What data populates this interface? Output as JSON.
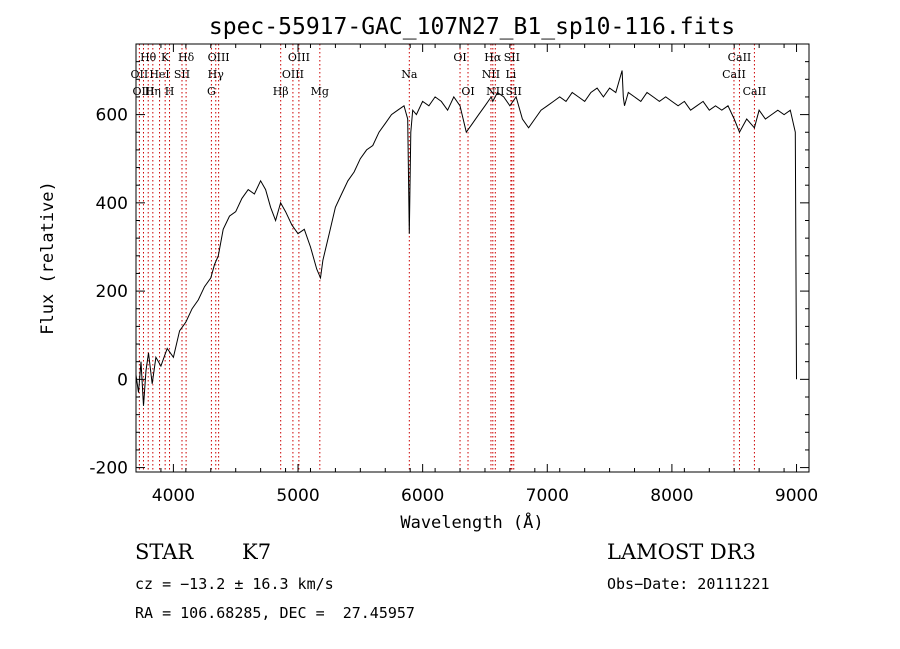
{
  "chart_data": {
    "type": "line",
    "title": "spec-55917-GAC_107N27_B1_sp10-116.fits",
    "xlabel": "Wavelength (Å)",
    "ylabel": "Flux (relative)",
    "xlim": [
      3700,
      9100
    ],
    "ylim": [
      -210,
      760
    ],
    "x_ticks": [
      4000,
      5000,
      6000,
      7000,
      8000,
      9000
    ],
    "y_ticks": [
      -200,
      0,
      200,
      400,
      600
    ],
    "series": [
      {
        "name": "flux",
        "x": [
          3700,
          3720,
          3740,
          3760,
          3780,
          3800,
          3830,
          3860,
          3900,
          3950,
          4000,
          4050,
          4100,
          4150,
          4200,
          4250,
          4300,
          4330,
          4360,
          4400,
          4450,
          4500,
          4550,
          4600,
          4650,
          4700,
          4740,
          4780,
          4820,
          4860,
          4900,
          4950,
          5000,
          5050,
          5100,
          5150,
          5180,
          5200,
          5250,
          5300,
          5350,
          5400,
          5450,
          5500,
          5550,
          5600,
          5650,
          5700,
          5750,
          5800,
          5850,
          5880,
          5893,
          5905,
          5920,
          5950,
          6000,
          6050,
          6100,
          6150,
          6200,
          6250,
          6300,
          6350,
          6400,
          6450,
          6500,
          6550,
          6563,
          6600,
          6650,
          6700,
          6750,
          6800,
          6850,
          6900,
          6950,
          7000,
          7050,
          7100,
          7150,
          7200,
          7250,
          7300,
          7350,
          7400,
          7450,
          7500,
          7550,
          7600,
          7610,
          7620,
          7650,
          7700,
          7750,
          7800,
          7850,
          7900,
          7950,
          8000,
          8050,
          8100,
          8150,
          8200,
          8250,
          8300,
          8350,
          8400,
          8450,
          8500,
          8542,
          8600,
          8662,
          8700,
          8750,
          8800,
          8850,
          8900,
          8950,
          8990,
          9000
        ],
        "y": [
          10,
          -30,
          40,
          -60,
          20,
          60,
          -10,
          50,
          30,
          70,
          50,
          110,
          130,
          160,
          180,
          210,
          230,
          260,
          280,
          340,
          370,
          380,
          410,
          430,
          420,
          450,
          430,
          390,
          360,
          400,
          380,
          350,
          330,
          340,
          300,
          250,
          230,
          270,
          330,
          390,
          420,
          450,
          470,
          500,
          520,
          530,
          560,
          580,
          600,
          610,
          620,
          590,
          330,
          560,
          610,
          600,
          630,
          620,
          640,
          630,
          610,
          640,
          620,
          560,
          580,
          600,
          620,
          640,
          630,
          650,
          640,
          620,
          640,
          590,
          570,
          590,
          610,
          620,
          630,
          640,
          630,
          650,
          640,
          630,
          650,
          660,
          640,
          660,
          650,
          700,
          640,
          620,
          650,
          640,
          630,
          650,
          640,
          630,
          640,
          630,
          620,
          630,
          610,
          620,
          630,
          610,
          620,
          610,
          620,
          590,
          560,
          590,
          570,
          610,
          590,
          600,
          610,
          600,
          610,
          560,
          0
        ]
      }
    ],
    "spectral_lines": [
      {
        "label": "Hθ",
        "x": 3798,
        "row": 0
      },
      {
        "label": "OII",
        "x": 3727,
        "row": 1
      },
      {
        "label": "OIII",
        "x": 3760,
        "row": 2
      },
      {
        "label": "K",
        "x": 3934,
        "row": 0
      },
      {
        "label": "HeI",
        "x": 3889,
        "row": 1
      },
      {
        "label": "Hη",
        "x": 3835,
        "row": 2
      },
      {
        "label": "SII",
        "x": 4069,
        "row": 1
      },
      {
        "label": "Hδ",
        "x": 4102,
        "row": 0
      },
      {
        "label": "H",
        "x": 3969,
        "row": 2
      },
      {
        "label": "OIII",
        "x": 4363,
        "row": 0
      },
      {
        "label": "Hγ",
        "x": 4340,
        "row": 1
      },
      {
        "label": "G",
        "x": 4305,
        "row": 2
      },
      {
        "label": "OIII",
        "x": 5007,
        "row": 0
      },
      {
        "label": "OIII",
        "x": 4959,
        "row": 1
      },
      {
        "label": "Hβ",
        "x": 4861,
        "row": 2
      },
      {
        "label": "Mg",
        "x": 5175,
        "row": 2
      },
      {
        "label": "Na",
        "x": 5893,
        "row": 1
      },
      {
        "label": "OI",
        "x": 6300,
        "row": 0
      },
      {
        "label": "OI",
        "x": 6364,
        "row": 2
      },
      {
        "label": "Hα",
        "x": 6563,
        "row": 0
      },
      {
        "label": "SII",
        "x": 6716,
        "row": 0
      },
      {
        "label": "NII",
        "x": 6548,
        "row": 1
      },
      {
        "label": "Li",
        "x": 6708,
        "row": 1
      },
      {
        "label": "NII",
        "x": 6583,
        "row": 2
      },
      {
        "label": "SII",
        "x": 6731,
        "row": 2
      },
      {
        "label": "CaII",
        "x": 8542,
        "row": 0
      },
      {
        "label": "CaII",
        "x": 8498,
        "row": 1
      },
      {
        "label": "CaII",
        "x": 8662,
        "row": 2
      }
    ]
  },
  "info": {
    "class": "STAR",
    "subclass": "K7",
    "survey": "LAMOST DR3",
    "cz": "cz = −13.2 ± 16.3 km/s",
    "obs_date": "Obs−Date: 20111221",
    "coords": "RA = 106.68285, DEC =  27.45957"
  }
}
